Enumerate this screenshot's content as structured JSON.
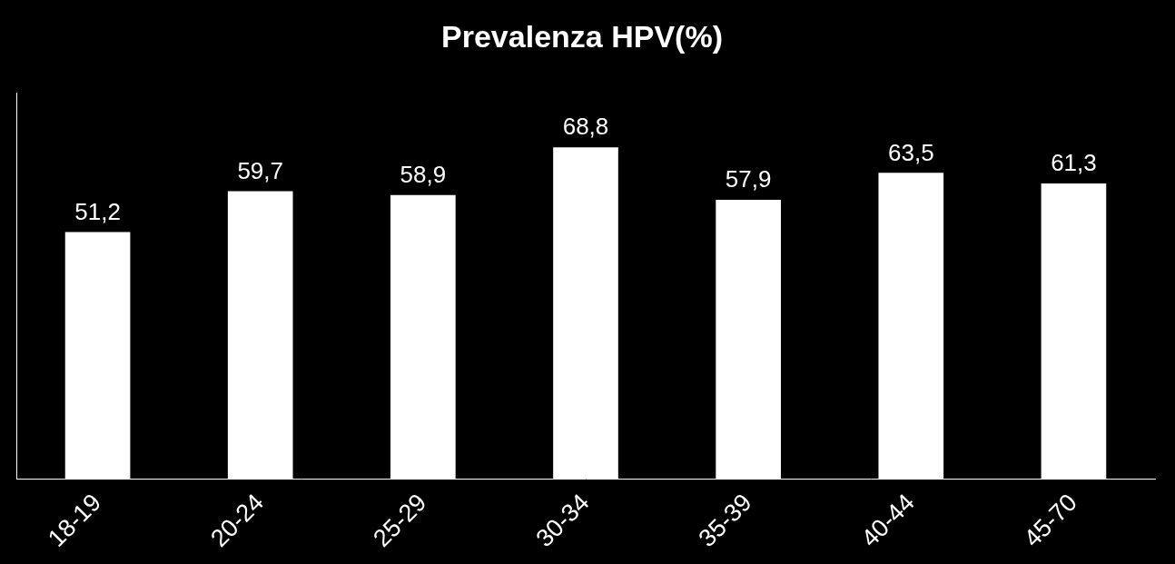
{
  "chart_data": {
    "type": "bar",
    "title": "Prevalenza HPV(%)",
    "categories": [
      "18-19",
      "20-24",
      "25-29",
      "30-34",
      "35-39",
      "40-44",
      "45-70"
    ],
    "values": [
      51.2,
      59.7,
      58.9,
      68.8,
      57.9,
      63.5,
      61.3
    ],
    "value_labels": [
      "51,2",
      "59,7",
      "58,9",
      "68,8",
      "57,9",
      "63,5",
      "61,3"
    ],
    "color": "#ffffff",
    "ylim": [
      0,
      80
    ],
    "grid": false,
    "data_labels": true,
    "tick_labels": "x"
  }
}
